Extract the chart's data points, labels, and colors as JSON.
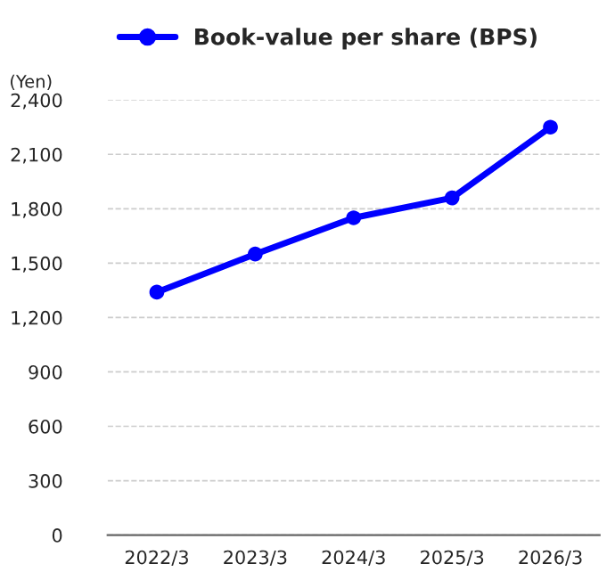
{
  "chart_data": {
    "type": "line",
    "ylabel": "(Yen)",
    "categories": [
      "2022/3",
      "2023/3",
      "2024/3",
      "2025/3",
      "2026/3"
    ],
    "series": [
      {
        "name": "Book-value per share (BPS)",
        "color": "#0000ff",
        "values": [
          1340,
          1550,
          1750,
          1860,
          2250
        ]
      }
    ],
    "ylim": [
      0,
      2400
    ],
    "yticks": [
      {
        "value": 0,
        "label": "0"
      },
      {
        "value": 300,
        "label": "300"
      },
      {
        "value": 600,
        "label": "600"
      },
      {
        "value": 900,
        "label": "900"
      },
      {
        "value": 1200,
        "label": "1,200"
      },
      {
        "value": 1500,
        "label": "1,500"
      },
      {
        "value": 1800,
        "label": "1,800"
      },
      {
        "value": 2100,
        "label": "2,100"
      },
      {
        "value": 2400,
        "label": "2,400"
      }
    ],
    "grid": "y",
    "legend": "top",
    "marker": "circle",
    "line_style": "solid"
  }
}
